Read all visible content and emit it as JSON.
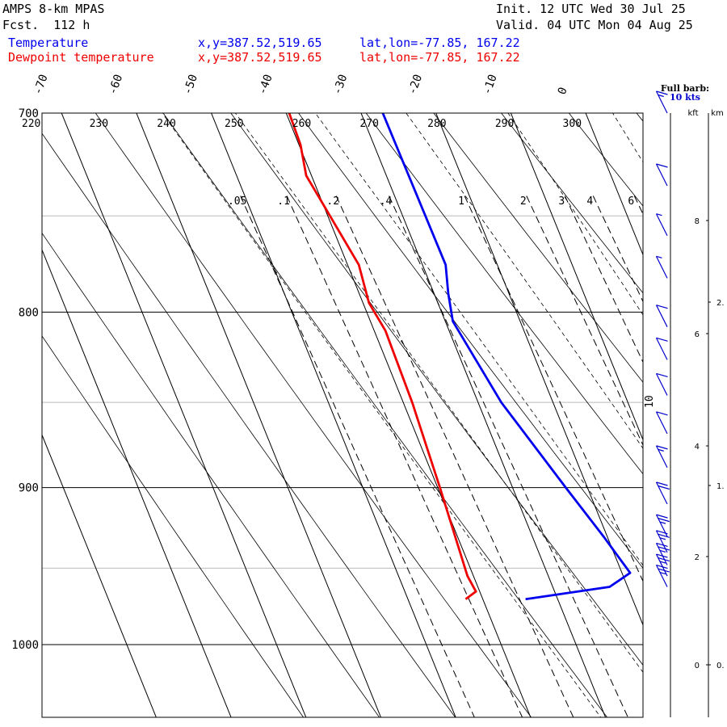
{
  "header": {
    "title": "AMPS 8-km MPAS",
    "fcst": "Fcst.  112 h",
    "init": "Init. 12 UTC Wed 30 Jul 25",
    "valid": "Valid. 04 UTC Mon 04 Aug 25"
  },
  "legend": {
    "temperature": {
      "label": "Temperature",
      "xy": "x,y=387.52,519.65",
      "latlon": "lat,lon=-77.85, 167.22",
      "color": "#0000ee"
    },
    "dewpoint": {
      "label": "Dewpoint temperature",
      "xy": "x,y=387.52,519.65",
      "latlon": "lat,lon=-77.85, 167.22",
      "color": "#ee0000"
    }
  },
  "barb_note": {
    "line1": "Full barb:",
    "line2": "10 kts"
  },
  "chart_data": {
    "type": "line",
    "pressure_ticks": [
      "700",
      "800",
      "900",
      "1000"
    ],
    "temperature_ticks": [
      "-70",
      "-60",
      "-50",
      "-40",
      "-30",
      "-20",
      "-10",
      "0"
    ],
    "theta_labels": [
      "220",
      "230",
      "240",
      "250",
      "260",
      "270",
      "280",
      "290",
      "300"
    ],
    "mixing_ratio_labels": [
      ".05",
      ".1",
      ".2",
      ".4",
      "1",
      "2",
      "3",
      "4",
      "6"
    ],
    "kft_ticks": [
      "8",
      "6",
      "4",
      "2",
      "0"
    ],
    "km_ticks": [
      "2.",
      "1.",
      "0."
    ],
    "axis_headers": {
      "kft": "kft",
      "km": "km"
    },
    "side_label": "10",
    "ylim_hpa": [
      700,
      1040
    ],
    "series": [
      {
        "name": "Temperature",
        "color": "#0000ee",
        "points": [
          [
            700,
            -27.1
          ],
          [
            775,
            -26.9
          ],
          [
            790,
            -28.1
          ],
          [
            805,
            -29.0
          ],
          [
            850,
            -26.9
          ],
          [
            900,
            -22.9
          ],
          [
            930,
            -20.5
          ],
          [
            953,
            -18.9
          ],
          [
            962,
            -22.4
          ],
          [
            970,
            -34.3
          ]
        ]
      },
      {
        "name": "Dewpoint temperature",
        "color": "#ee0000",
        "points": [
          [
            700,
            -39.6
          ],
          [
            715,
            -39.8
          ],
          [
            730,
            -40.7
          ],
          [
            775,
            -38.5
          ],
          [
            795,
            -39.2
          ],
          [
            810,
            -38.5
          ],
          [
            850,
            -38.8
          ],
          [
            900,
            -39.7
          ],
          [
            955,
            -40.8
          ],
          [
            965,
            -40.5
          ],
          [
            970,
            -42.3
          ]
        ]
      }
    ],
    "wind_barbs": [
      {
        "p": 700,
        "kts": 15
      },
      {
        "p": 735,
        "kts": 10
      },
      {
        "p": 760,
        "kts": 5
      },
      {
        "p": 782,
        "kts": 5
      },
      {
        "p": 808,
        "kts": 10
      },
      {
        "p": 826,
        "kts": 10
      },
      {
        "p": 846,
        "kts": 10
      },
      {
        "p": 868,
        "kts": 10
      },
      {
        "p": 888,
        "kts": 15
      },
      {
        "p": 910,
        "kts": 20
      },
      {
        "p": 930,
        "kts": 25
      },
      {
        "p": 940,
        "kts": 25
      },
      {
        "p": 948,
        "kts": 25
      },
      {
        "p": 955,
        "kts": 25
      },
      {
        "p": 962,
        "kts": 25
      }
    ]
  }
}
